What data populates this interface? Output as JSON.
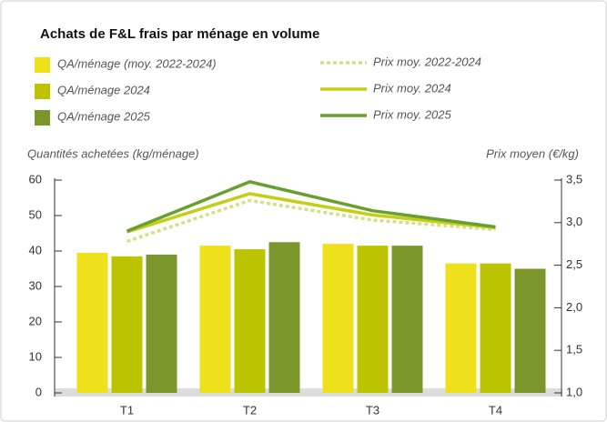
{
  "chart_data": {
    "type": "bar",
    "title": "Achats de F&L frais par ménage en volume",
    "ylabel": "Quantités achetées (kg/ménage)",
    "y2label": "Prix moyen (€/kg)",
    "categories": [
      "T1",
      "T2",
      "T3",
      "T4"
    ],
    "series": [
      {
        "name": "QA/ménage (moy. 2022-2024)",
        "type": "bar",
        "color": "#efe01c",
        "values": [
          39.5,
          41.5,
          42,
          36.5
        ]
      },
      {
        "name": "QA/ménage 2024",
        "type": "bar",
        "color": "#bcc300",
        "values": [
          38.5,
          40.5,
          41.5,
          36.5
        ]
      },
      {
        "name": "QA/ménage 2025",
        "type": "bar",
        "color": "#7b962a",
        "values": [
          39,
          42.5,
          41.5,
          35
        ]
      },
      {
        "name": "Prix moy. 2022-2024",
        "type": "line",
        "axis": "y2",
        "dashed": true,
        "color": "#d7df86",
        "values": [
          2.78,
          3.26,
          3.03,
          2.92
        ]
      },
      {
        "name": "Prix moy. 2024",
        "type": "line",
        "axis": "y2",
        "color": "#c5cd14",
        "values": [
          2.89,
          3.34,
          3.09,
          2.94
        ]
      },
      {
        "name": "Prix moy. 2025",
        "type": "line",
        "axis": "y2",
        "color": "#67a02e",
        "values": [
          2.9,
          3.48,
          3.14,
          2.95
        ]
      }
    ],
    "ylim": [
      0,
      60
    ],
    "yticks": [
      0,
      10,
      20,
      30,
      40,
      50,
      60
    ],
    "y2lim": [
      1,
      3.5
    ],
    "y2ticks": [
      {
        "value": 1,
        "label": "1,0"
      },
      {
        "value": 1.5,
        "label": "1,5"
      },
      {
        "value": 2,
        "label": "2,0"
      },
      {
        "value": 2.5,
        "label": "2,5"
      },
      {
        "value": 3,
        "label": "3,0"
      },
      {
        "value": 3.5,
        "label": "3,5"
      }
    ]
  }
}
